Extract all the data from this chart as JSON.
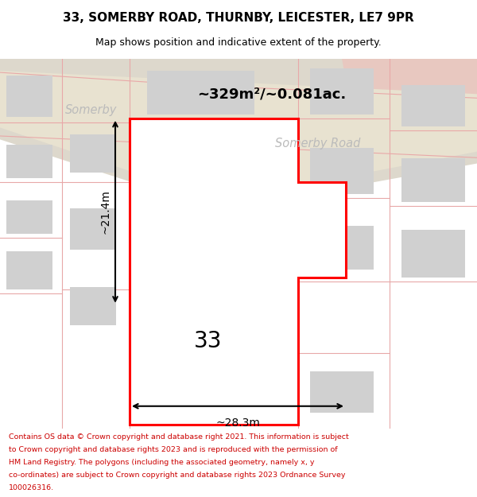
{
  "title": "33, SOMERBY ROAD, THURNBY, LEICESTER, LE7 9PR",
  "subtitle": "Map shows position and indicative extent of the property.",
  "footer_lines": [
    "Contains OS data © Crown copyright and database right 2021. This information is subject",
    "to Crown copyright and database rights 2023 and is reproduced with the permission of",
    "HM Land Registry. The polygons (including the associated geometry, namely x, y",
    "co-ordinates) are subject to Crown copyright and database rights 2023 Ordnance Survey",
    "100026316."
  ],
  "bg_color": "#f5f4ef",
  "plot_line_color": "#e8a8a8",
  "highlight_color": "#ff0000",
  "building_color": "#d0d0d0",
  "road_band_color": "#ddd8cc",
  "road_surface_color": "#e8e2d0",
  "salmon_color": "#e8c8c0",
  "area_text": "~329m²/~0.081ac.",
  "number_text": "33",
  "dim_width": "~28.3m",
  "dim_height": "~21.4m",
  "road_label1": "Somerby",
  "road_label2": "Somerby Road",
  "label_color": "#bbbbbb",
  "title_fontsize": 11,
  "subtitle_fontsize": 9,
  "footer_fontsize": 6.8,
  "footer_color": "#cc0000"
}
